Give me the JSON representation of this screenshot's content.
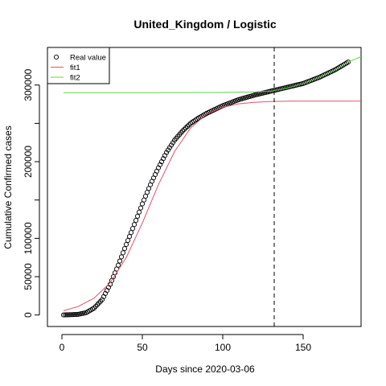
{
  "chart_data": {
    "type": "scatter",
    "title": "United_Kingdom / Logistic",
    "xlabel": "Days since 2020-03-06",
    "ylabel": "Cumulative Confirmed cases",
    "xlim": [
      -9,
      186
    ],
    "ylim": [
      -15000,
      349000
    ],
    "x_ticks": [
      0,
      50,
      100,
      150
    ],
    "y_ticks": [
      0,
      50000,
      100000,
      200000,
      300000
    ],
    "y_tick_labels": [
      "0",
      "50000",
      "100000",
      "200000",
      "300000"
    ],
    "y_minor_ticks": [
      0,
      50000,
      100000,
      150000,
      200000,
      250000,
      300000
    ],
    "vline_x": 132,
    "legend": {
      "position": "top-left",
      "entries": [
        {
          "label": "Real value",
          "kind": "point",
          "color": "#000000"
        },
        {
          "label": "fit1",
          "kind": "line",
          "color": "#DF536B"
        },
        {
          "label": "fit2",
          "kind": "line",
          "color": "#61D04F"
        }
      ]
    },
    "series": [
      {
        "name": "Real value",
        "kind": "points",
        "color": "#000000",
        "x_start": 1,
        "x_end": 178,
        "knots_x": [
          0,
          10,
          15,
          20,
          25,
          30,
          35,
          40,
          45,
          50,
          55,
          60,
          65,
          70,
          75,
          80,
          85,
          90,
          100,
          110,
          120,
          130,
          140,
          150,
          160,
          170,
          178
        ],
        "knots_y": [
          0,
          800,
          3000,
          9000,
          20000,
          40000,
          65000,
          92000,
          118000,
          145000,
          170000,
          192000,
          212000,
          228000,
          240000,
          250000,
          257000,
          263000,
          273000,
          281000,
          287000,
          292000,
          297000,
          302000,
          310000,
          320000,
          330000
        ]
      },
      {
        "name": "fit1",
        "kind": "line",
        "color": "#DF536B",
        "x_start": 1,
        "x_end": 186,
        "knots_x": [
          0,
          10,
          20,
          30,
          40,
          50,
          60,
          70,
          80,
          90,
          100,
          110,
          120,
          130,
          140,
          150,
          160,
          170,
          186
        ],
        "knots_y": [
          5000,
          11000,
          22000,
          42000,
          75000,
          120000,
          170000,
          213000,
          244000,
          262000,
          271000,
          275500,
          277500,
          278500,
          278900,
          279000,
          279000,
          279000,
          279000
        ]
      },
      {
        "name": "fit2",
        "kind": "line",
        "color": "#61D04F",
        "x_start": 1,
        "x_end": 186,
        "knots_x": [
          0,
          50,
          100,
          120,
          130,
          140,
          150,
          160,
          170,
          178,
          186
        ],
        "knots_y": [
          290000,
          290000,
          290300,
          291000,
          292000,
          296000,
          302000,
          310000,
          320000,
          330000,
          337000
        ]
      }
    ]
  }
}
